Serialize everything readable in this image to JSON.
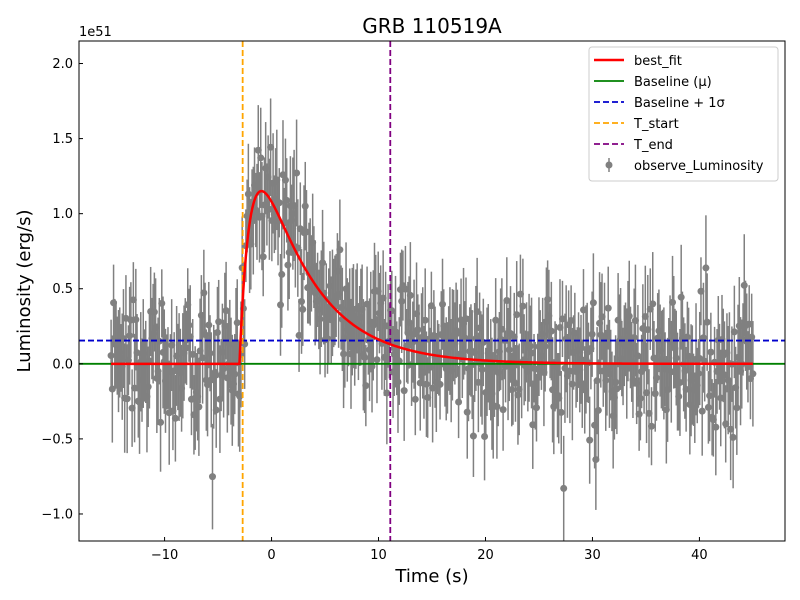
{
  "chart_data": {
    "type": "scatter",
    "title": "GRB 110519A",
    "xlabel": "Time (s)",
    "ylabel": "Luminosity (erg/s)",
    "y_scale_label": "1e51",
    "y_scale": 1e+51,
    "xlim": [
      -18,
      48
    ],
    "ylim": [
      -1.18,
      2.15
    ],
    "x_ticks": [
      -10,
      0,
      10,
      20,
      30,
      40
    ],
    "y_ticks": [
      -1.0,
      -0.5,
      0.0,
      0.5,
      1.0,
      1.5,
      2.0
    ],
    "y_tick_labels": [
      "−1.0",
      "−0.5",
      "0.0",
      "0.5",
      "1.0",
      "1.5",
      "2.0"
    ],
    "x_tick_labels": [
      "−10",
      "0",
      "10",
      "20",
      "30",
      "40"
    ],
    "legend_position": "top-right",
    "observations": {
      "name": "observe_Luminosity",
      "color": "#808080",
      "x_range": [
        -15,
        45
      ],
      "n_points": 520,
      "noise_sigma": 0.21,
      "typical_error": 0.3
    },
    "best_fit": {
      "name": "best_fit",
      "color": "#ff0000",
      "t0": -3.0,
      "peak_time": 0.3,
      "peak_value": 1.04,
      "rise_tau": 1.3,
      "decay_tau": 5.0,
      "x_range": [
        -15,
        45
      ]
    },
    "baseline": {
      "name": "Baseline (μ)",
      "value": 0.0,
      "color": "#008000"
    },
    "baseline_sigma": {
      "name": "Baseline + 1σ",
      "value": 0.155,
      "color": "#0000cc"
    },
    "t_start": {
      "name": "T_start",
      "value": -2.7,
      "color": "#ffa500"
    },
    "t_end": {
      "name": "T_end",
      "value": 11.1,
      "color": "#800080"
    }
  }
}
